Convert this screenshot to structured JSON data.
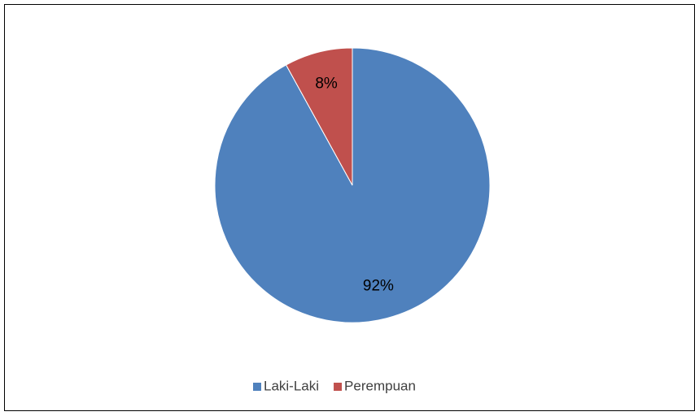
{
  "chart_data": {
    "type": "pie",
    "categories": [
      "Laki-Laki",
      "Perempuan"
    ],
    "values": [
      92,
      8
    ],
    "value_labels": [
      "92%",
      "8%"
    ],
    "colors": [
      "#4f81bd",
      "#c0504d"
    ],
    "legend": "bottom"
  }
}
